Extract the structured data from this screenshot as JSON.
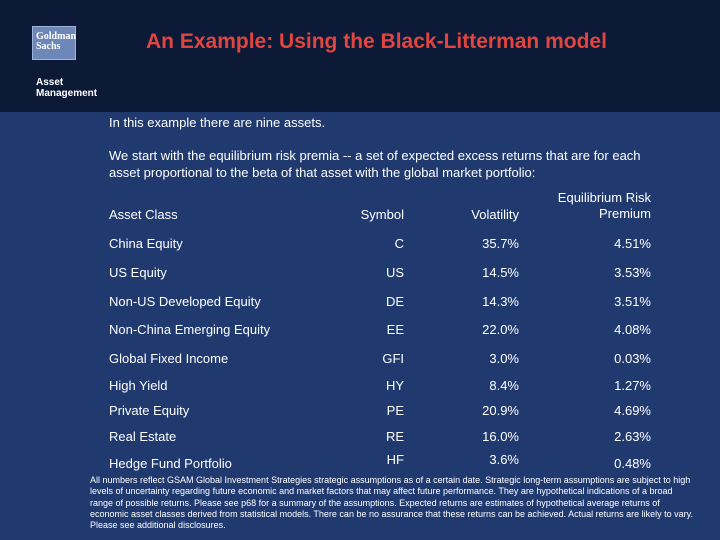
{
  "header": {
    "logo_line1": "Goldman",
    "logo_line2": "Sachs",
    "sub_line1": "Asset",
    "sub_line2": "Management",
    "title": "An Example:  Using the Black-Litterman model"
  },
  "intro": "In this example there are nine assets.",
  "paragraph": "We start with the equilibrium risk premia -- a set of expected excess returns that are for each asset proportional to the beta of that asset with the global market portfolio:",
  "table": {
    "columns": {
      "asset": "Asset Class",
      "symbol": "Symbol",
      "volatility": "Volatility",
      "premium_line1": "Equilibrium Risk",
      "premium_line2": "Premium"
    },
    "rows": [
      {
        "asset": "China Equity",
        "symbol": "C",
        "volatility": "35.7%",
        "premium": "4.51%"
      },
      {
        "asset": "US Equity",
        "symbol": "US",
        "volatility": "14.5%",
        "premium": "3.53%"
      },
      {
        "asset": "Non-US Developed Equity",
        "symbol": "DE",
        "volatility": "14.3%",
        "premium": "3.51%"
      },
      {
        "asset": "Non-China Emerging Equity",
        "symbol": "EE",
        "volatility": "22.0%",
        "premium": "4.08%"
      },
      {
        "asset": "Global Fixed Income",
        "symbol": "GFI",
        "volatility": "3.0%",
        "premium": "0.03%"
      },
      {
        "asset": "High Yield",
        "symbol": "HY",
        "volatility": "8.4%",
        "premium": "1.27%"
      },
      {
        "asset": "Private Equity",
        "symbol": "PE",
        "volatility": "20.9%",
        "premium": "4.69%"
      },
      {
        "asset": "Real Estate",
        "symbol": "RE",
        "volatility": "16.0%",
        "premium": "2.63%"
      },
      {
        "asset": "Hedge Fund Portfolio",
        "symbol": "HF",
        "volatility": "3.6%",
        "premium": "0.48%"
      }
    ]
  },
  "footnote": "All numbers reflect GSAM Global Investment Strategies strategic assumptions as of a certain date.  Strategic long-term assumptions are subject to high levels of uncertainty regarding future economic and market factors that may affect future performance. They are hypothetical indications of a broad range of possible returns. Please see p68 for a summary of the assumptions. Expected returns are estimates of hypothetical average returns of economic asset classes derived from statistical models. There can be no assurance that these returns can be achieved.  Actual returns are likely to vary.  Please see additional disclosures."
}
